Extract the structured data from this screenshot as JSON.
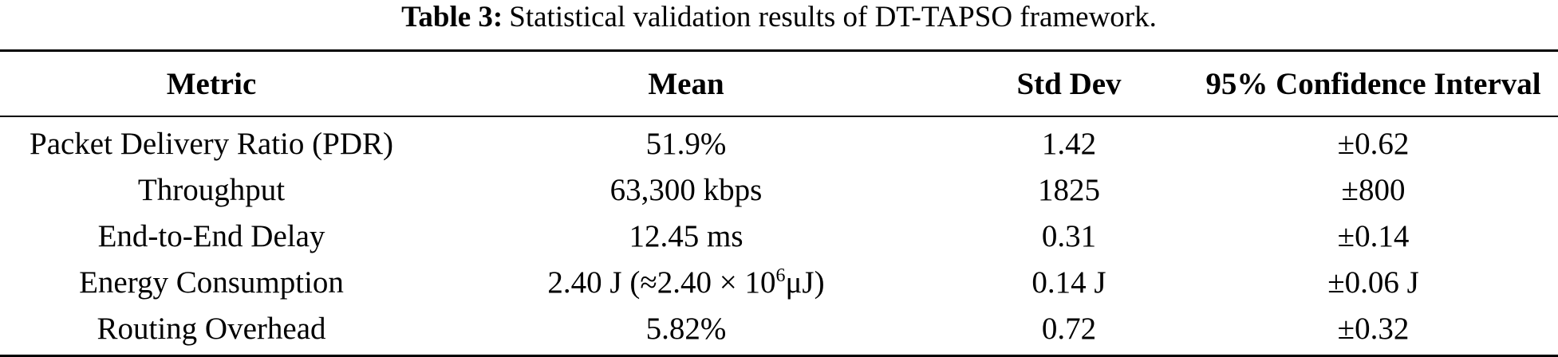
{
  "caption": {
    "label": "Table 3:",
    "text": "Statistical validation results of DT-TAPSO framework."
  },
  "table": {
    "headers": [
      "Metric",
      "Mean",
      "Std Dev",
      "95% Confidence Interval"
    ],
    "rows": [
      {
        "metric": "Packet Delivery Ratio (PDR)",
        "mean": "51.9%",
        "std": "1.42",
        "ci": "±0.62"
      },
      {
        "metric": "Throughput",
        "mean": "63,300 kbps",
        "std": "1825",
        "ci": "±800"
      },
      {
        "metric": "End-to-End Delay",
        "mean": "12.45 ms",
        "std": "0.31",
        "ci": "±0.14"
      },
      {
        "metric": "Energy Consumption",
        "mean_main": "2.40 J (≈2.40 × 10",
        "mean_exp": "6",
        "mean_tail": "μJ)",
        "std": "0.14 J",
        "ci": "±0.06 J"
      },
      {
        "metric": "Routing Overhead",
        "mean": "5.82%",
        "std": "0.72",
        "ci": "±0.32"
      }
    ]
  }
}
